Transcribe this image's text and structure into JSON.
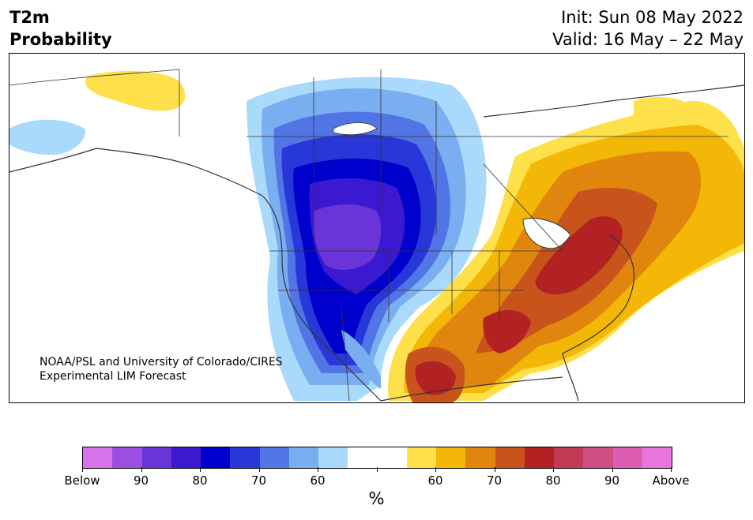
{
  "header": {
    "title_line1": "T2m",
    "title_line2": "Probability",
    "init": "Init: Sun 08 May 2022",
    "valid": "Valid: 16 May – 22 May"
  },
  "map": {
    "credit_line1": "NOAA/PSL and University of Colorado/CIRES",
    "credit_line2": "Experimental LIM Forecast",
    "cold_anomaly_region": "Western United States and Canadian Prairies",
    "warm_anomaly_region": "Eastern and Southern United States, Eastern Canada"
  },
  "colorbar": {
    "unit": "%",
    "tick_labels": [
      "Below",
      "90",
      "80",
      "70",
      "60",
      "",
      "60",
      "70",
      "80",
      "90",
      "Above"
    ],
    "colors": [
      "#d574ea",
      "#9b4fe0",
      "#6a35d6",
      "#3a19d1",
      "#0000cc",
      "#2737d8",
      "#5275e6",
      "#79aef0",
      "#a9dafc",
      "#ffffff",
      "#ffffff",
      "#fde04a",
      "#f2b707",
      "#e0860f",
      "#c8541b",
      "#b32223",
      "#c23a55",
      "#d14e84",
      "#dd5db3",
      "#e875de"
    ]
  }
}
